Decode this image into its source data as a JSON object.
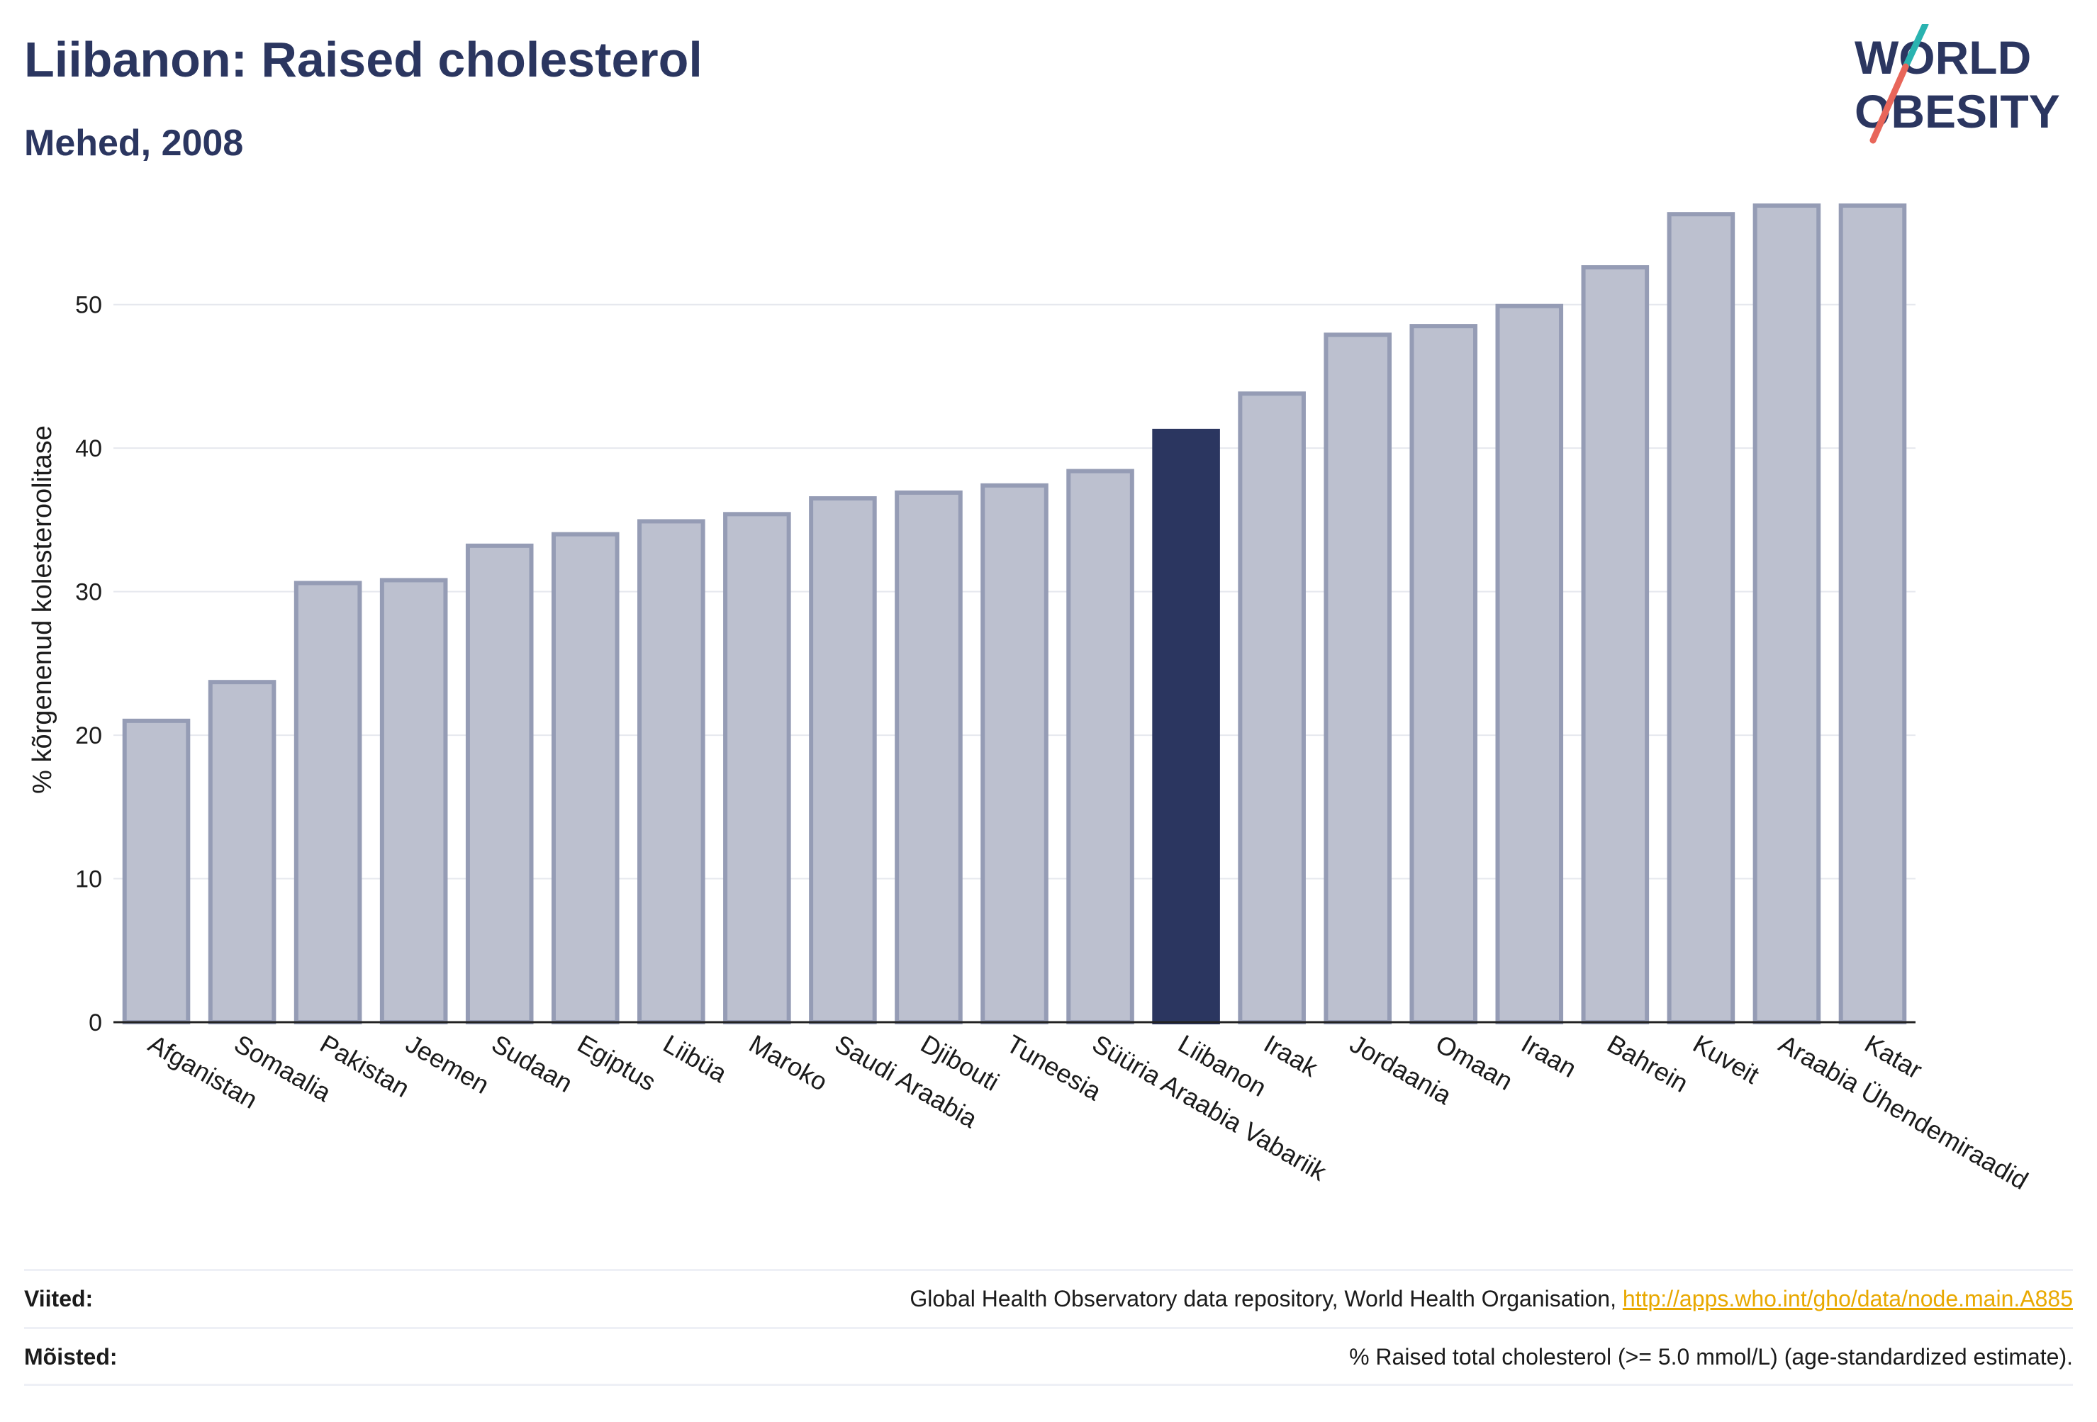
{
  "title": "Liibanon: Raised cholesterol",
  "subtitle": "Mehed, 2008",
  "logo": {
    "line1": "WORLD",
    "line2": "OBESITY",
    "color": "#2b3660",
    "slash_top": "#2ab3b0",
    "slash_bottom": "#e8665a"
  },
  "colors": {
    "bar": "#bcc0cf",
    "bar_border": "#959cb5",
    "highlight": "#2b3660",
    "grid": "#e6e8ee",
    "axis": "#222222"
  },
  "chart_data": {
    "type": "bar",
    "ylabel": "% kõrgenenud kolesteroolitase",
    "ylim": [
      0,
      57
    ],
    "yticks": [
      0,
      10,
      20,
      30,
      40,
      50
    ],
    "grid": true,
    "highlight": "Liibanon",
    "categories": [
      "Afganistan",
      "Somaalia",
      "Pakistan",
      "Jeemen",
      "Sudaan",
      "Egiptus",
      "Liibüa",
      "Maroko",
      "Saudi Araabia",
      "Djibouti",
      "Tuneesia",
      "Süüria Araabia Vabariik",
      "Liibanon",
      "Iraak",
      "Jordaania",
      "Omaan",
      "Iraan",
      "Bahrein",
      "Kuveit",
      "Araabia Ühendemiraadid",
      "Katar"
    ],
    "values": [
      21.0,
      23.7,
      30.6,
      30.8,
      33.2,
      34.0,
      34.9,
      35.4,
      36.5,
      36.9,
      37.4,
      38.4,
      41.2,
      43.8,
      47.9,
      48.5,
      49.9,
      52.6,
      56.3,
      56.9,
      56.9
    ]
  },
  "footer": {
    "sources_label": "Viited:",
    "sources_text": "Global Health Observatory data repository, World Health Organisation, ",
    "sources_link": "http://apps.who.int/gho/data/node.main.A885",
    "definitions_label": "Mõisted:",
    "definitions_text": "% Raised total cholesterol (>= 5.0 mmol/L) (age-standardized estimate)."
  }
}
